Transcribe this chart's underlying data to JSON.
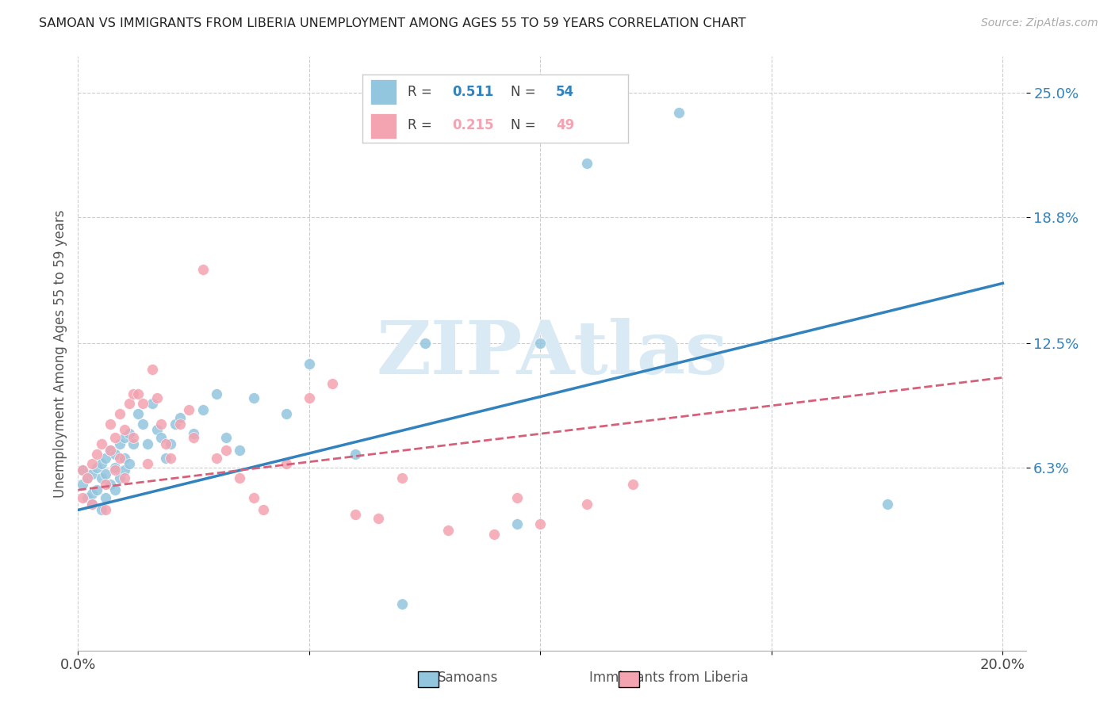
{
  "title": "SAMOAN VS IMMIGRANTS FROM LIBERIA UNEMPLOYMENT AMONG AGES 55 TO 59 YEARS CORRELATION CHART",
  "source": "Source: ZipAtlas.com",
  "ylabel": "Unemployment Among Ages 55 to 59 years",
  "xlim": [
    0.0,
    0.205
  ],
  "ylim": [
    -0.028,
    0.268
  ],
  "yticks": [
    0.063,
    0.125,
    0.188,
    0.25
  ],
  "ytick_labels": [
    "6.3%",
    "12.5%",
    "18.8%",
    "25.0%"
  ],
  "xticks": [
    0.0,
    0.05,
    0.1,
    0.15,
    0.2
  ],
  "xtick_labels": [
    "0.0%",
    "",
    "",
    "",
    "20.0%"
  ],
  "blue_R": 0.511,
  "blue_N": 54,
  "pink_R": 0.215,
  "pink_N": 49,
  "blue_color": "#92c5de",
  "pink_color": "#f4a3b0",
  "blue_line_color": "#3182bd",
  "pink_line_color": "#d6607a",
  "watermark": "ZIPAtlas",
  "watermark_color": "#daeaf5",
  "background_color": "#ffffff",
  "blue_line_x0": 0.0,
  "blue_line_y0": 0.042,
  "blue_line_x1": 0.2,
  "blue_line_y1": 0.155,
  "pink_line_x0": 0.0,
  "pink_line_y0": 0.052,
  "pink_line_x1": 0.2,
  "pink_line_y1": 0.108,
  "blue_scatter_x": [
    0.001,
    0.001,
    0.002,
    0.002,
    0.003,
    0.003,
    0.003,
    0.004,
    0.004,
    0.005,
    0.005,
    0.005,
    0.006,
    0.006,
    0.006,
    0.007,
    0.007,
    0.008,
    0.008,
    0.008,
    0.009,
    0.009,
    0.01,
    0.01,
    0.01,
    0.011,
    0.011,
    0.012,
    0.013,
    0.014,
    0.015,
    0.016,
    0.017,
    0.018,
    0.019,
    0.02,
    0.021,
    0.022,
    0.025,
    0.027,
    0.03,
    0.032,
    0.035,
    0.038,
    0.045,
    0.05,
    0.06,
    0.07,
    0.075,
    0.095,
    0.1,
    0.11,
    0.13,
    0.175
  ],
  "blue_scatter_y": [
    0.062,
    0.055,
    0.058,
    0.048,
    0.06,
    0.05,
    0.045,
    0.063,
    0.052,
    0.065,
    0.058,
    0.042,
    0.068,
    0.06,
    0.048,
    0.072,
    0.055,
    0.07,
    0.063,
    0.052,
    0.075,
    0.058,
    0.068,
    0.062,
    0.078,
    0.08,
    0.065,
    0.075,
    0.09,
    0.085,
    0.075,
    0.095,
    0.082,
    0.078,
    0.068,
    0.075,
    0.085,
    0.088,
    0.08,
    0.092,
    0.1,
    0.078,
    0.072,
    0.098,
    0.09,
    0.115,
    0.07,
    -0.005,
    0.125,
    0.035,
    0.125,
    0.215,
    0.24,
    0.045
  ],
  "pink_scatter_x": [
    0.001,
    0.001,
    0.002,
    0.003,
    0.003,
    0.004,
    0.005,
    0.006,
    0.006,
    0.007,
    0.007,
    0.008,
    0.008,
    0.009,
    0.009,
    0.01,
    0.01,
    0.011,
    0.012,
    0.012,
    0.013,
    0.014,
    0.015,
    0.016,
    0.017,
    0.018,
    0.019,
    0.02,
    0.022,
    0.024,
    0.025,
    0.027,
    0.03,
    0.032,
    0.035,
    0.038,
    0.04,
    0.045,
    0.05,
    0.055,
    0.06,
    0.065,
    0.07,
    0.08,
    0.09,
    0.095,
    0.1,
    0.11,
    0.12
  ],
  "pink_scatter_y": [
    0.062,
    0.048,
    0.058,
    0.065,
    0.045,
    0.07,
    0.075,
    0.055,
    0.042,
    0.085,
    0.072,
    0.078,
    0.062,
    0.09,
    0.068,
    0.082,
    0.058,
    0.095,
    0.1,
    0.078,
    0.1,
    0.095,
    0.065,
    0.112,
    0.098,
    0.085,
    0.075,
    0.068,
    0.085,
    0.092,
    0.078,
    0.162,
    0.068,
    0.072,
    0.058,
    0.048,
    0.042,
    0.065,
    0.098,
    0.105,
    0.04,
    0.038,
    0.058,
    0.032,
    0.03,
    0.048,
    0.035,
    0.045,
    0.055
  ]
}
